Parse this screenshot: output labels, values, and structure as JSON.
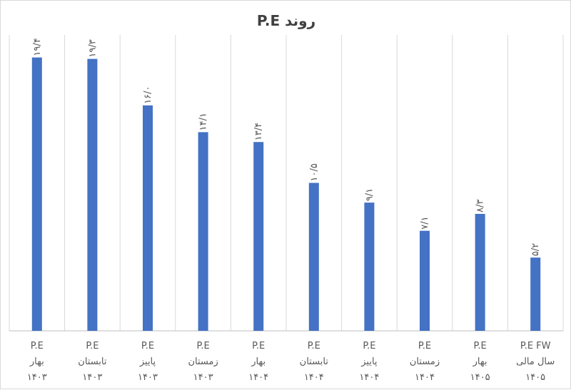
{
  "chart_data": {
    "type": "bar",
    "title": "روند P.E",
    "xlabel": "",
    "ylabel": "",
    "ylim": [
      0,
      21
    ],
    "grid": "vertical-category-separators",
    "legend": "none",
    "bar_color": "#4472C4",
    "categories": [
      [
        "P.E",
        "بهار",
        "۱۴۰۳"
      ],
      [
        "P.E",
        "تابستان",
        "۱۴۰۳"
      ],
      [
        "P.E",
        "پاییز",
        "۱۴۰۳"
      ],
      [
        "P.E",
        "زمستان",
        "۱۴۰۳"
      ],
      [
        "P.E",
        "بهار",
        "۱۴۰۴"
      ],
      [
        "P.E",
        "تابستان",
        "۱۴۰۴"
      ],
      [
        "P.E",
        "پاییز",
        "۱۴۰۴"
      ],
      [
        "P.E",
        "زمستان",
        "۱۴۰۴"
      ],
      [
        "P.E",
        "بهار",
        "۱۴۰۵"
      ],
      [
        "P.E FW",
        "سال مالی",
        "۱۴۰۵"
      ]
    ],
    "values": [
      19.4,
      19.3,
      16.0,
      14.1,
      13.4,
      10.5,
      9.1,
      7.1,
      8.3,
      5.2
    ],
    "value_labels": [
      "۱۹/۴",
      "۱۹/۳",
      "۱۶/۰",
      "۱۴/۱",
      "۱۳/۴",
      "۱۰/۵",
      "۹/۱",
      "۷/۱",
      "۸/۳",
      "۵/۲"
    ]
  }
}
